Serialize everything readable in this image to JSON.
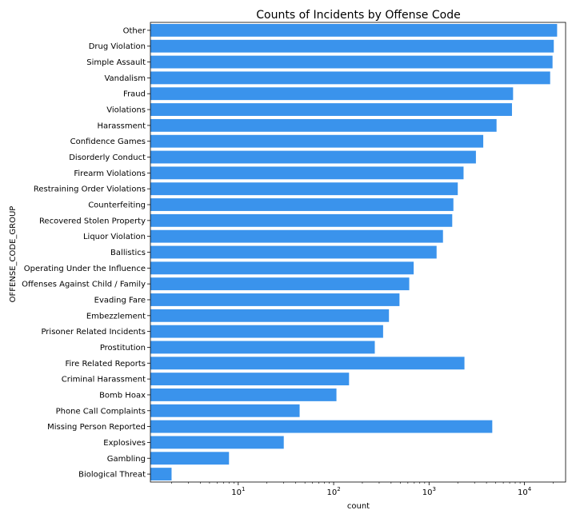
{
  "chart_data": {
    "type": "bar",
    "orientation": "horizontal",
    "title": "Counts of Incidents by Offense Code",
    "xlabel": "count",
    "ylabel": "OFFENSE_CODE_GROUP",
    "x_scale": "log",
    "xlim": [
      1.2,
      27000
    ],
    "x_ticks": [
      10,
      100,
      1000,
      10000
    ],
    "x_tick_labels": [
      "10",
      "100",
      "1000",
      "10000"
    ],
    "x_tick_base": "10",
    "x_tick_exponents": [
      "1",
      "2",
      "3",
      "4"
    ],
    "grid": false,
    "bar_color": "#3a93ec",
    "categories": [
      "Other",
      "Drug Violation",
      "Simple Assault",
      "Vandalism",
      "Fraud",
      "Violations",
      "Harassment",
      "Confidence Games",
      "Disorderly Conduct",
      "Firearm Violations",
      "Restraining Order Violations",
      "Counterfeiting",
      "Recovered Stolen Property",
      "Liquor Violation",
      "Ballistics",
      "Operating Under the Influence",
      "Offenses Against Child / Family",
      "Evading Fare",
      "Embezzlement",
      "Prisoner Related Incidents",
      "Prostitution",
      "Fire Related Reports",
      "Criminal Harassment",
      "Bomb Hoax",
      "Phone Call Complaints",
      "Missing Person Reported",
      "Explosives",
      "Gambling",
      "Biological Threat"
    ],
    "values": [
      22000,
      20300,
      19700,
      18600,
      7600,
      7400,
      5100,
      3700,
      3100,
      2300,
      2000,
      1800,
      1750,
      1400,
      1200,
      690,
      620,
      490,
      380,
      330,
      270,
      2350,
      145,
      107,
      44,
      4600,
      30,
      8,
      2
    ]
  }
}
